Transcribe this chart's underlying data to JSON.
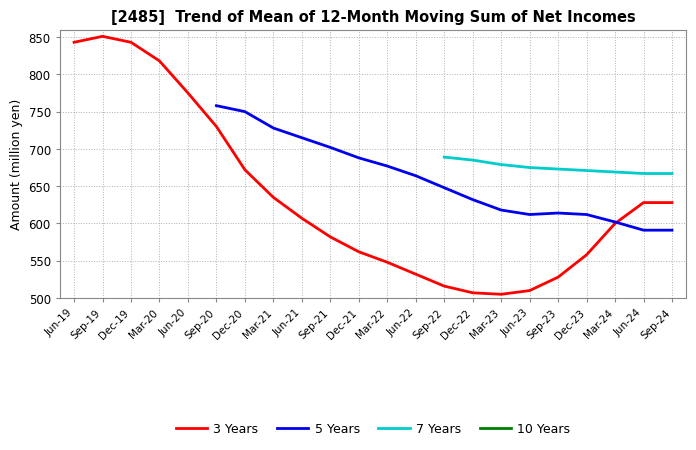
{
  "title": "[2485]  Trend of Mean of 12-Month Moving Sum of Net Incomes",
  "ylabel": "Amount (million yen)",
  "ylim": [
    500,
    860
  ],
  "yticks": [
    500,
    550,
    600,
    650,
    700,
    750,
    800,
    850
  ],
  "background_color": "#ffffff",
  "grid_color": "#b0b0b0",
  "x_labels": [
    "Jun-19",
    "Sep-19",
    "Dec-19",
    "Mar-20",
    "Jun-20",
    "Sep-20",
    "Dec-20",
    "Mar-21",
    "Jun-21",
    "Sep-21",
    "Dec-21",
    "Mar-22",
    "Jun-22",
    "Sep-22",
    "Dec-22",
    "Mar-23",
    "Jun-23",
    "Sep-23",
    "Dec-23",
    "Mar-24",
    "Jun-24",
    "Sep-24"
  ],
  "series_3y": {
    "label": "3 Years",
    "color": "#ff0000",
    "x": [
      0,
      1,
      2,
      3,
      4,
      5,
      6,
      7,
      8,
      9,
      10,
      11,
      12,
      13,
      14,
      15,
      16,
      17,
      18,
      19,
      20,
      21
    ],
    "y": [
      843,
      851,
      843,
      818,
      775,
      730,
      672,
      635,
      607,
      582,
      562,
      548,
      532,
      516,
      507,
      505,
      510,
      528,
      558,
      600,
      628,
      628
    ]
  },
  "series_5y": {
    "label": "5 Years",
    "color": "#0000ee",
    "x": [
      5,
      6,
      7,
      8,
      9,
      10,
      11,
      12,
      13,
      14,
      15,
      16,
      17,
      18,
      19,
      20,
      21
    ],
    "y": [
      758,
      750,
      728,
      715,
      702,
      688,
      677,
      664,
      648,
      632,
      618,
      612,
      614,
      612,
      602,
      591,
      591
    ]
  },
  "series_7y": {
    "label": "7 Years",
    "color": "#00cccc",
    "x": [
      13,
      14,
      15,
      16,
      17,
      18,
      19,
      20,
      21
    ],
    "y": [
      689,
      685,
      679,
      675,
      673,
      671,
      669,
      667,
      667
    ]
  },
  "series_10y": {
    "label": "10 Years",
    "color": "#008000",
    "x": [],
    "y": []
  }
}
